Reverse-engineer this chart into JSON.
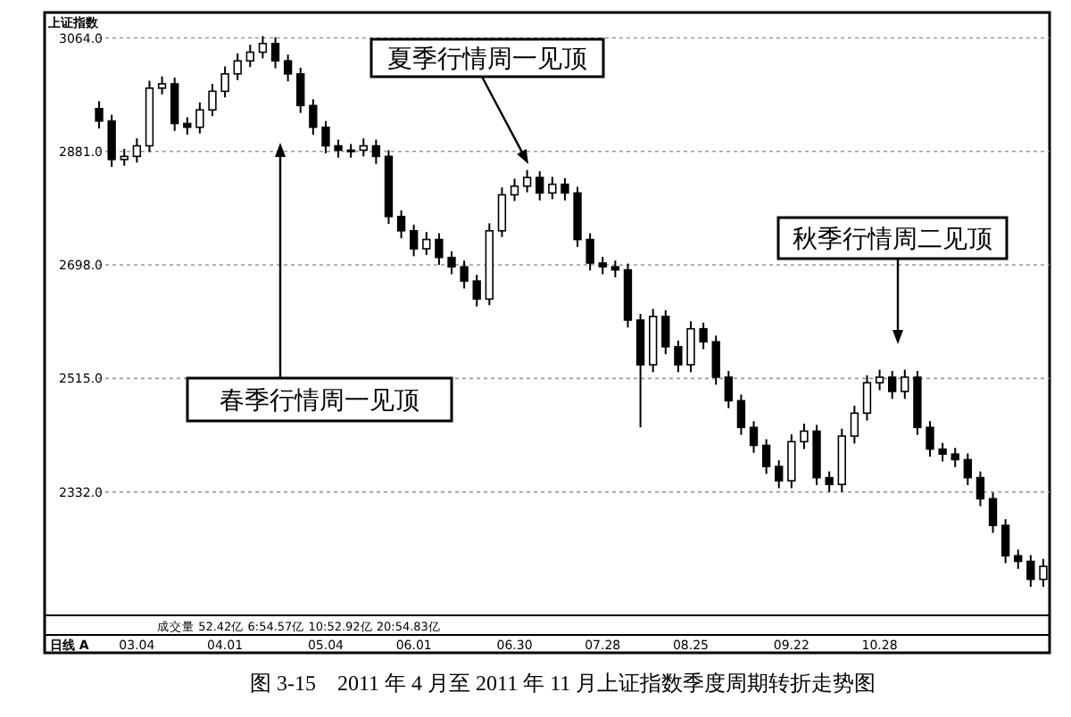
{
  "chart_data": {
    "type": "candlestick",
    "title": "上证指数",
    "categories": [
      null,
      null,
      null,
      "03.04",
      null,
      null,
      null,
      null,
      null,
      null,
      "04.01",
      null,
      null,
      null,
      null,
      null,
      null,
      null,
      "05.04",
      null,
      null,
      null,
      null,
      null,
      null,
      "06.01",
      null,
      null,
      null,
      null,
      null,
      null,
      null,
      "06.30",
      null,
      null,
      null,
      null,
      null,
      null,
      "07.28",
      null,
      null,
      null,
      null,
      null,
      null,
      "08.25",
      null,
      null,
      null,
      null,
      null,
      null,
      null,
      "09.22",
      null,
      null,
      null,
      null,
      null,
      null,
      "10.28",
      null,
      null,
      null,
      null,
      null,
      null,
      null,
      null,
      null,
      null,
      null,
      null,
      null
    ],
    "ohlc": [
      [
        2950,
        2962,
        2918,
        2930
      ],
      [
        2930,
        2940,
        2856,
        2868
      ],
      [
        2868,
        2885,
        2858,
        2873
      ],
      [
        2873,
        2902,
        2863,
        2890
      ],
      [
        2890,
        2995,
        2880,
        2983
      ],
      [
        2983,
        3002,
        2973,
        2990
      ],
      [
        2990,
        3000,
        2914,
        2926
      ],
      [
        2926,
        2936,
        2908,
        2920
      ],
      [
        2920,
        2960,
        2910,
        2948
      ],
      [
        2948,
        2990,
        2938,
        2978
      ],
      [
        2978,
        3018,
        2968,
        3006
      ],
      [
        3006,
        3039,
        2996,
        3027
      ],
      [
        3027,
        3053,
        3017,
        3041
      ],
      [
        3041,
        3067,
        3031,
        3055
      ],
      [
        3055,
        3065,
        3015,
        3027
      ],
      [
        3027,
        3037,
        2994,
        3006
      ],
      [
        3006,
        3016,
        2943,
        2955
      ],
      [
        2955,
        2965,
        2908,
        2920
      ],
      [
        2920,
        2930,
        2878,
        2890
      ],
      [
        2890,
        2900,
        2871,
        2883
      ],
      [
        2883,
        2893,
        2871,
        2883
      ],
      [
        2883,
        2902,
        2873,
        2890
      ],
      [
        2890,
        2900,
        2861,
        2873
      ],
      [
        2873,
        2883,
        2764,
        2776
      ],
      [
        2776,
        2786,
        2741,
        2753
      ],
      [
        2753,
        2763,
        2712,
        2724
      ],
      [
        2724,
        2751,
        2714,
        2739
      ],
      [
        2739,
        2749,
        2698,
        2710
      ],
      [
        2710,
        2720,
        2683,
        2695
      ],
      [
        2695,
        2705,
        2660,
        2672
      ],
      [
        2672,
        2682,
        2631,
        2643
      ],
      [
        2643,
        2765,
        2633,
        2753
      ],
      [
        2753,
        2823,
        2743,
        2811
      ],
      [
        2811,
        2837,
        2801,
        2825
      ],
      [
        2825,
        2851,
        2815,
        2839
      ],
      [
        2839,
        2849,
        2802,
        2814
      ],
      [
        2814,
        2840,
        2804,
        2828
      ],
      [
        2828,
        2838,
        2802,
        2814
      ],
      [
        2814,
        2824,
        2727,
        2739
      ],
      [
        2739,
        2749,
        2689,
        2701
      ],
      [
        2701,
        2711,
        2683,
        2695
      ],
      [
        2695,
        2705,
        2678,
        2690
      ],
      [
        2690,
        2700,
        2597,
        2609
      ],
      [
        2609,
        2619,
        2436,
        2537
      ],
      [
        2537,
        2627,
        2525,
        2615
      ],
      [
        2615,
        2625,
        2554,
        2566
      ],
      [
        2566,
        2576,
        2525,
        2537
      ],
      [
        2537,
        2607,
        2525,
        2595
      ],
      [
        2595,
        2605,
        2562,
        2574
      ],
      [
        2574,
        2584,
        2505,
        2517
      ],
      [
        2517,
        2527,
        2467,
        2479
      ],
      [
        2479,
        2489,
        2424,
        2436
      ],
      [
        2436,
        2446,
        2395,
        2407
      ],
      [
        2407,
        2417,
        2361,
        2373
      ],
      [
        2373,
        2383,
        2338,
        2350
      ],
      [
        2350,
        2425,
        2338,
        2413
      ],
      [
        2413,
        2442,
        2401,
        2430
      ],
      [
        2430,
        2440,
        2343,
        2355
      ],
      [
        2355,
        2365,
        2332,
        2344
      ],
      [
        2344,
        2434,
        2332,
        2422
      ],
      [
        2422,
        2471,
        2410,
        2459
      ],
      [
        2459,
        2520,
        2447,
        2508
      ],
      [
        2508,
        2529,
        2496,
        2517
      ],
      [
        2517,
        2527,
        2482,
        2494
      ],
      [
        2494,
        2529,
        2482,
        2517
      ],
      [
        2517,
        2527,
        2424,
        2436
      ],
      [
        2436,
        2446,
        2389,
        2401
      ],
      [
        2401,
        2411,
        2381,
        2393
      ],
      [
        2393,
        2403,
        2372,
        2384
      ],
      [
        2384,
        2394,
        2343,
        2355
      ],
      [
        2355,
        2365,
        2309,
        2321
      ],
      [
        2321,
        2331,
        2266,
        2278
      ],
      [
        2278,
        2288,
        2217,
        2229
      ],
      [
        2229,
        2239,
        2208,
        2220
      ],
      [
        2220,
        2230,
        2179,
        2191
      ],
      [
        2191,
        2224,
        2179,
        2212
      ]
    ],
    "color": "#000000",
    "ylim": [
      2133,
      3105
    ],
    "yticks": [
      {
        "value": 2332,
        "label": "2332.0"
      },
      {
        "value": 2515,
        "label": "2515.0"
      },
      {
        "value": 2698,
        "label": "2698.0"
      },
      {
        "value": 2881,
        "label": "2881.0"
      },
      {
        "value": 3064,
        "label": "3064.0"
      }
    ],
    "grid": "y",
    "annotations": [
      "春季行情周一见顶",
      "夏季行情周一见顶",
      "秋季行情周二见顶",
      "成交量  52.42亿  6:54.57亿  10:52.92亿  20:54.83亿",
      "日线 A",
      "图 3-15　2011 年 4 月至 2011 年 11 月上证指数季度周期转折走势图"
    ]
  }
}
